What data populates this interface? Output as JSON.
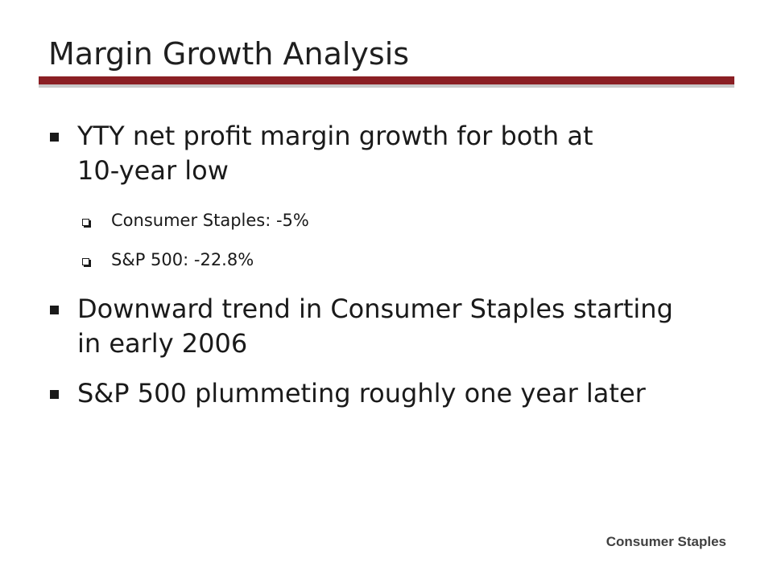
{
  "slide": {
    "title": "Margin Growth Analysis",
    "accent_color": "#8b1f24",
    "bullets": [
      {
        "text": "YTY net profit margin growth for both at 10-year low",
        "line1": "YTY net profit margin growth for both at",
        "line2": "10-year low",
        "sub_bullets": [
          "Consumer Staples: -5%",
          "S&P 500: -22.8%"
        ]
      },
      {
        "text": "Downward trend in Consumer Staples starting in early 2006",
        "line1": "Downward trend in Consumer Staples starting",
        "line2": "in early 2006"
      },
      {
        "text": "S&P 500 plummeting roughly one year later",
        "line1": "S&P 500 plummeting roughly one year later"
      }
    ],
    "footer": "Consumer Staples"
  }
}
